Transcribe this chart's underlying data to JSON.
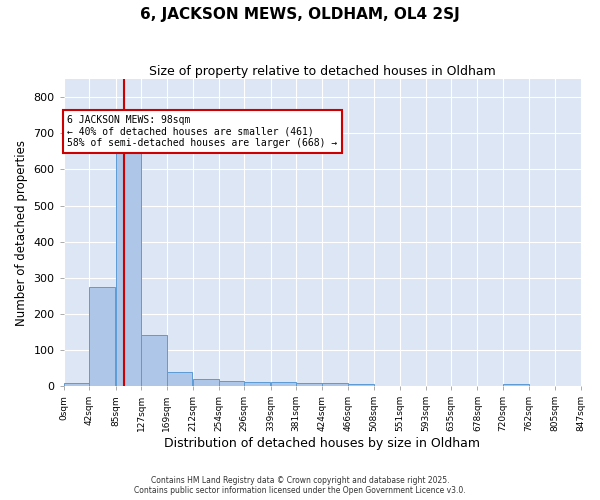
{
  "title": "6, JACKSON MEWS, OLDHAM, OL4 2SJ",
  "subtitle": "Size of property relative to detached houses in Oldham",
  "xlabel": "Distribution of detached houses by size in Oldham",
  "ylabel": "Number of detached properties",
  "bar_color": "#aec6e8",
  "bar_edge_color": "#5b9bd5",
  "background_color": "#dce6f5",
  "grid_color": "#ffffff",
  "bin_edges": [
    0,
    42,
    85,
    127,
    169,
    212,
    254,
    296,
    339,
    381,
    424,
    466,
    508,
    551,
    593,
    635,
    678,
    720,
    762,
    805,
    847
  ],
  "bin_labels": [
    "0sqm",
    "42sqm",
    "85sqm",
    "127sqm",
    "169sqm",
    "212sqm",
    "254sqm",
    "296sqm",
    "339sqm",
    "381sqm",
    "424sqm",
    "466sqm",
    "508sqm",
    "551sqm",
    "593sqm",
    "635sqm",
    "678sqm",
    "720sqm",
    "762sqm",
    "805sqm",
    "847sqm"
  ],
  "bar_heights": [
    8,
    275,
    648,
    140,
    38,
    20,
    13,
    11,
    10,
    9,
    8,
    5,
    0,
    0,
    0,
    0,
    0,
    5,
    0,
    0
  ],
  "vline_x": 98,
  "vline_color": "#cc0000",
  "annotation_text": "6 JACKSON MEWS: 98sqm\n← 40% of detached houses are smaller (461)\n58% of semi-detached houses are larger (668) →",
  "annotation_box_color": "#ffffff",
  "annotation_box_edge_color": "#cc0000",
  "ylim": [
    0,
    850
  ],
  "xlim_max": 847,
  "footer_text1": "Contains HM Land Registry data © Crown copyright and database right 2025.",
  "footer_text2": "Contains public sector information licensed under the Open Government Licence v3.0."
}
